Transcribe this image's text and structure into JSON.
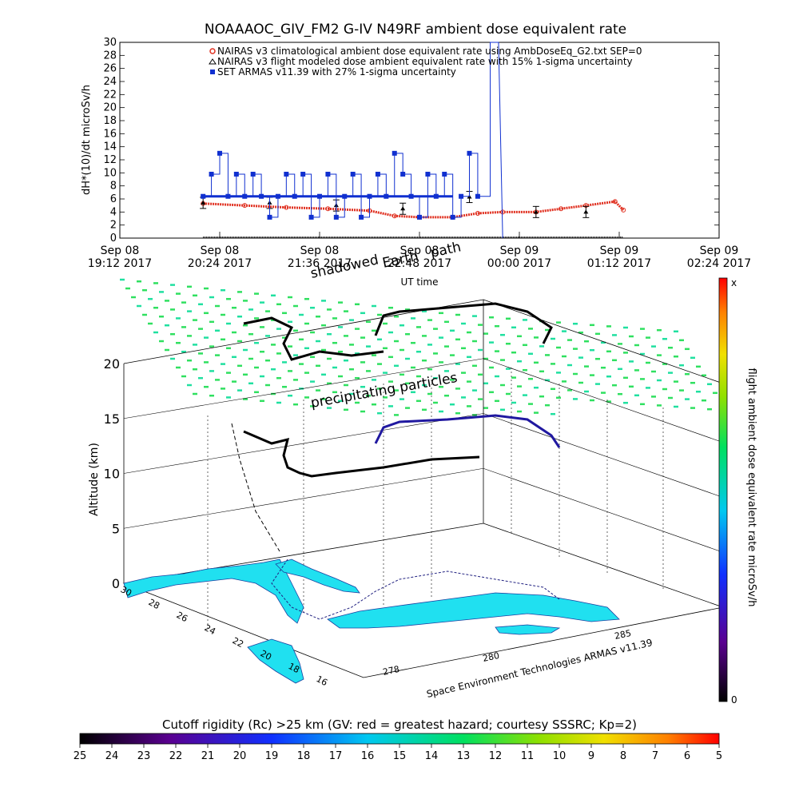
{
  "figure": {
    "title": "NOAAAOC_GIV_FM2 G-IV    N49RF  ambient dose equivalent rate",
    "credit": "Space Environment Technologies ARMAS v11.39"
  },
  "chart_data": [
    {
      "type": "line",
      "name": "dose-rate-time-series",
      "title": "NOAAAOC_GIV_FM2 G-IV    N49RF  ambient dose equivalent rate",
      "xlabel": "UT time",
      "ylabel": "dH*(10)/dt microSv/h",
      "ylim": [
        0,
        30
      ],
      "yticks": [
        "0",
        "2",
        "4",
        "6",
        "8",
        "10",
        "12",
        "14",
        "16",
        "18",
        "20",
        "22",
        "24",
        "26",
        "28",
        "30"
      ],
      "x_unit": "hours after Sep 08 19:12 2017",
      "xlim": [
        0,
        7.2
      ],
      "xtick_labels": [
        {
          "line1": "Sep 08",
          "line2": "19:12 2017"
        },
        {
          "line1": "Sep 08",
          "line2": "20:24 2017"
        },
        {
          "line1": "Sep 08",
          "line2": "21:36 2017"
        },
        {
          "line1": "Sep 08",
          "line2": "22:48 2017"
        },
        {
          "line1": "Sep 09",
          "line2": "00:00 2017"
        },
        {
          "line1": "Sep 09",
          "line2": "01:12 2017"
        },
        {
          "line1": "Sep 09",
          "line2": "02:24 2017"
        }
      ],
      "annotations": [
        "shadowed",
        "Earth",
        "path"
      ],
      "legend_position": "top",
      "series": [
        {
          "name": "NAIRAS v3 climatological ambient dose equivalent rate using AmbDoseEq_G2.txt SEP=0",
          "marker": "circle",
          "color": "#e03020",
          "x": [
            1.0,
            1.5,
            2.0,
            2.5,
            3.0,
            3.3,
            3.6,
            4.0,
            4.3,
            4.6,
            5.0,
            5.3,
            5.6,
            5.95,
            6.05
          ],
          "y": [
            5.3,
            5.0,
            4.7,
            4.5,
            4.2,
            3.4,
            3.2,
            3.2,
            3.8,
            4.0,
            4.0,
            4.5,
            5.0,
            5.6,
            4.3
          ]
        },
        {
          "name": "NAIRAS v3 flight modeled dose ambient equivalent rate with 15% 1-sigma uncertainty",
          "marker": "triangle",
          "color": "#000000",
          "x": [
            1.0,
            1.8,
            2.6,
            3.4,
            4.2,
            5.0,
            5.6
          ],
          "y": [
            5.4,
            5.4,
            5.0,
            4.5,
            6.3,
            4.0,
            4.0
          ]
        },
        {
          "name": "SET ARMAS v11.39 with 27% 1-sigma uncertainty",
          "marker": "square",
          "color": "#1030d0",
          "x": [
            1.0,
            1.1,
            1.2,
            1.3,
            1.4,
            1.5,
            1.6,
            1.7,
            1.8,
            1.9,
            2.0,
            2.1,
            2.2,
            2.3,
            2.4,
            2.5,
            2.6,
            2.7,
            2.8,
            2.9,
            3.0,
            3.1,
            3.2,
            3.3,
            3.4,
            3.5,
            3.6,
            3.7,
            3.8,
            3.9,
            4.0,
            4.1,
            4.2,
            4.3,
            4.45,
            4.55
          ],
          "y": [
            6.4,
            9.8,
            13.0,
            6.4,
            9.8,
            6.4,
            9.8,
            6.4,
            3.2,
            6.4,
            9.8,
            6.4,
            9.8,
            3.2,
            6.4,
            9.8,
            3.2,
            6.4,
            9.8,
            3.2,
            6.4,
            9.8,
            6.4,
            13.0,
            9.8,
            6.4,
            3.2,
            9.8,
            6.4,
            9.8,
            3.2,
            6.4,
            13.0,
            6.4,
            30.0,
            30.0
          ]
        }
      ]
    },
    {
      "type": "scatter",
      "name": "3d-flight-track",
      "zlabel": "Altitude (km)",
      "zlim": [
        0,
        20
      ],
      "zticks": [
        "0",
        "5",
        "10",
        "15",
        "20"
      ],
      "lat_ticks": [
        "30",
        "28",
        "26",
        "24",
        "22",
        "20",
        "18",
        "16"
      ],
      "lon_ticks": [
        "278",
        "280",
        "285"
      ],
      "annotations": [
        "precipitating particles"
      ],
      "credit": "Space Environment Technologies ARMAS v11.39"
    },
    {
      "type": "heatmap",
      "name": "dose-rate-colorbar",
      "ylabel": "flight ambient dose equivalent rate microSv/h",
      "range_labels": {
        "top": "x",
        "bottom": "0"
      }
    },
    {
      "type": "heatmap",
      "name": "cutoff-rigidity-colorbar",
      "title": "Cutoff rigidity (Rc) >25 km (GV: red = greatest hazard; courtesy SSSRC; Kp=2)",
      "ticks": [
        "25",
        "24",
        "23",
        "22",
        "21",
        "20",
        "19",
        "18",
        "17",
        "16",
        "15",
        "14",
        "13",
        "12",
        "11",
        "10",
        "9",
        "8",
        "7",
        "6",
        "5"
      ]
    }
  ]
}
